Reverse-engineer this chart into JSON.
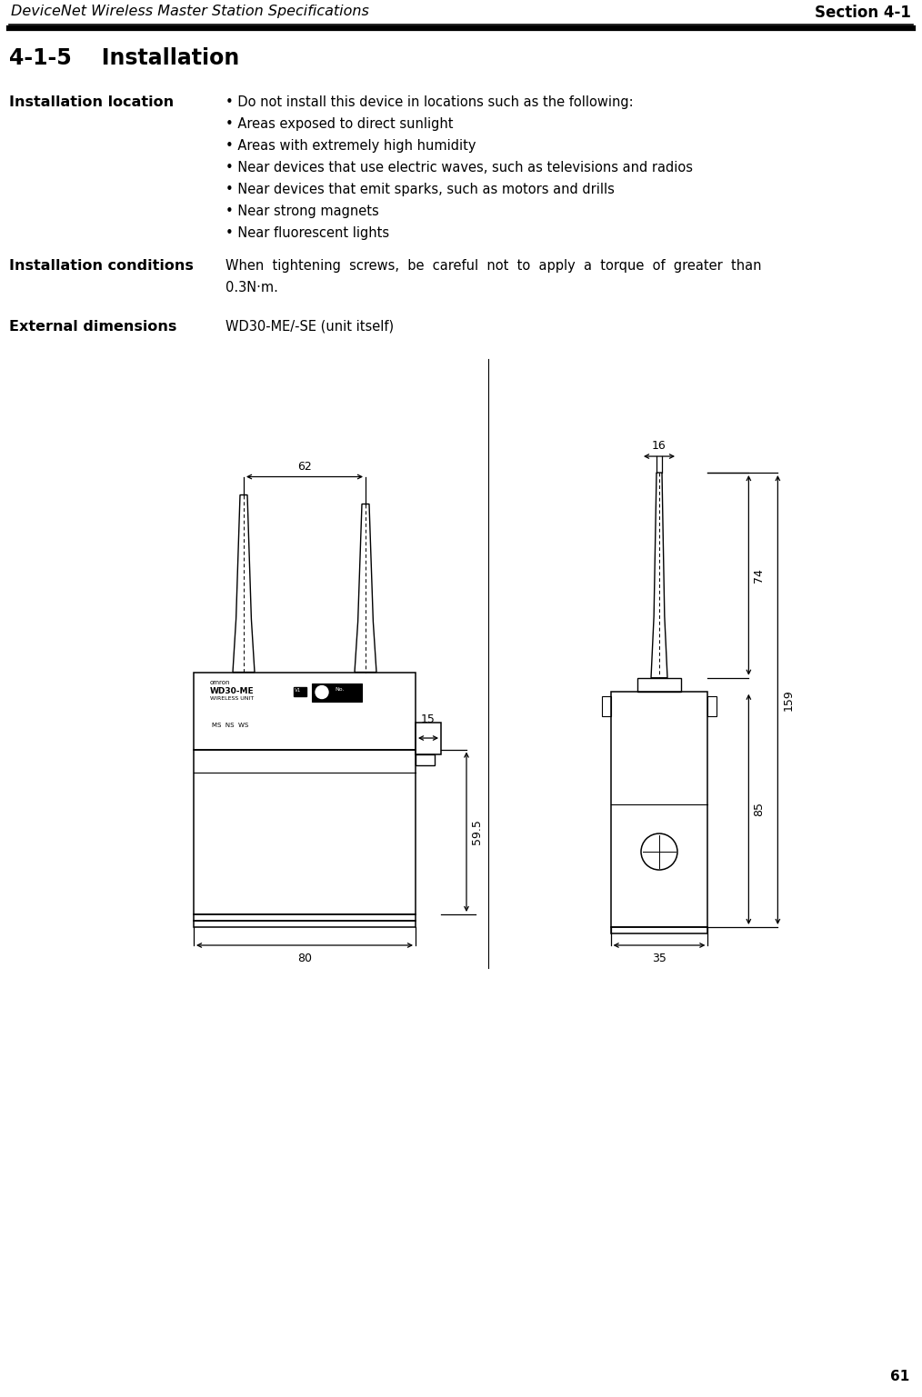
{
  "header_left": "DeviceNet Wireless Master Station Specifications",
  "header_right": "Section 4-1",
  "section_title": "4-1-5    Installation",
  "label_installation_location": "Installation location",
  "label_installation_conditions": "Installation conditions",
  "label_external_dimensions": "External dimensions",
  "bullets": [
    "• Do not install this device in locations such as the following:",
    "• Areas exposed to direct sunlight",
    "• Areas with extremely high humidity",
    "• Near devices that use electric waves, such as televisions and radios",
    "• Near devices that emit sparks, such as motors and drills",
    "• Near strong magnets",
    "• Near fluorescent lights"
  ],
  "conditions_text_line1": "When  tightening  screws,  be  careful  not  to  apply  a  torque  of  greater  than",
  "conditions_text_line2": "0.3N·m.",
  "ext_dim_text": "WD30-ME/-SE (unit itself)",
  "page_number": "61",
  "background_color": "#ffffff"
}
